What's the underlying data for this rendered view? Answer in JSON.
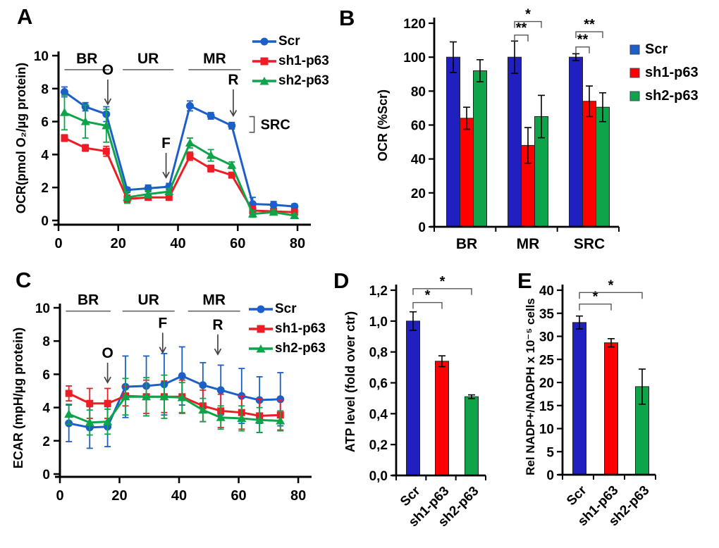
{
  "figure": {
    "background": "#ffffff",
    "panels": [
      "A",
      "B",
      "C",
      "D",
      "E"
    ]
  },
  "colors": {
    "line_blue": "#1C5FC8",
    "bar_blue": "#2020C0",
    "red": "#EE1C25",
    "bar_red": "#FF0000",
    "green": "#0DA44A",
    "axis": "#000000"
  },
  "chart_data": [
    {
      "panel": "A",
      "type": "line",
      "title": "",
      "xlabel": "",
      "ylabel": "OCR(pmol O₂/µg protein)",
      "xlim": [
        0,
        84
      ],
      "ylim": [
        0,
        10
      ],
      "xticks": [
        0,
        20,
        40,
        60,
        80
      ],
      "yticks": [
        0,
        2,
        4,
        6,
        8,
        10
      ],
      "legend_position": "top-right",
      "x": [
        2,
        9,
        16,
        23,
        30,
        37,
        44,
        51,
        58,
        65,
        72,
        79
      ],
      "series": [
        {
          "name": "Scr",
          "marker": "circle",
          "color": "#1C5FC8",
          "values": [
            7.8,
            6.9,
            6.45,
            1.85,
            1.95,
            2.05,
            6.95,
            6.35,
            5.75,
            1.0,
            0.95,
            0.85
          ],
          "errors": [
            0.3,
            0.25,
            0.45,
            0.15,
            0.2,
            0.2,
            0.3,
            0.2,
            0.2,
            0.4,
            0.2,
            0.15
          ]
        },
        {
          "name": "sh1-p63",
          "marker": "square",
          "color": "#EE1C25",
          "values": [
            5.0,
            4.4,
            4.2,
            1.3,
            1.4,
            1.4,
            3.9,
            3.15,
            2.75,
            0.6,
            0.55,
            0.5
          ],
          "errors": [
            0.2,
            0.2,
            0.3,
            0.25,
            0.15,
            0.15,
            0.25,
            0.2,
            0.15,
            0.25,
            0.15,
            0.1
          ]
        },
        {
          "name": "sh2-p63",
          "marker": "triangle",
          "color": "#0DA44A",
          "values": [
            6.55,
            6.0,
            5.75,
            1.4,
            1.6,
            1.75,
            4.7,
            3.95,
            3.35,
            0.4,
            0.5,
            0.3
          ],
          "errors": [
            1.05,
            1.0,
            1.0,
            0.35,
            0.2,
            0.2,
            0.3,
            0.35,
            0.2,
            0.2,
            0.15,
            0.1
          ]
        }
      ],
      "phases": [
        {
          "label": "BR",
          "x0": 2,
          "x1": 17
        },
        {
          "label": "UR",
          "x0": 21.5,
          "x1": 38.5
        },
        {
          "label": "MR",
          "x0": 43.5,
          "x1": 61
        }
      ],
      "phase_y": 9.15,
      "arrows": [
        {
          "label": "O",
          "x": 16.5,
          "ytop": 8.55,
          "ytip": 7.05
        },
        {
          "label": "F",
          "x": 36,
          "ytop": 4.1,
          "ytip": 2.6
        },
        {
          "label": "R",
          "x": 58.5,
          "ytop": 7.95,
          "ytip": 6.35
        }
      ],
      "side_bracket": {
        "label": "SRC",
        "x": 65.5,
        "y0": 5.35,
        "y1": 6.3
      }
    },
    {
      "panel": "B",
      "type": "bar_grouped",
      "title": "",
      "xlabel": "",
      "ylabel": "OCR (%Scr)",
      "ylim": [
        0,
        120
      ],
      "yticks": [
        0,
        20,
        40,
        60,
        80,
        100,
        120
      ],
      "legend_position": "right",
      "categories": [
        "BR",
        "MR",
        "SRC"
      ],
      "series": [
        {
          "name": "Scr",
          "color": "#2020C0",
          "values": [
            100,
            100,
            100
          ],
          "errors": [
            9,
            9.5,
            2
          ]
        },
        {
          "name": "sh1-p63",
          "color": "#FF0000",
          "values": [
            64,
            48,
            74
          ],
          "errors": [
            6.5,
            10.5,
            9
          ]
        },
        {
          "name": "sh2-p63",
          "color": "#0DA44A",
          "values": [
            92,
            65,
            70.5
          ],
          "errors": [
            6.5,
            12.5,
            8.5
          ]
        }
      ],
      "sig": [
        {
          "cat": 1,
          "s1": 0,
          "s2": 1,
          "y": 113,
          "label": "**"
        },
        {
          "cat": 1,
          "s1": 0,
          "s2": 2,
          "y": 121,
          "label": "*"
        },
        {
          "cat": 2,
          "s1": 0,
          "s2": 1,
          "y": 106,
          "label": "**"
        },
        {
          "cat": 2,
          "s1": 0,
          "s2": 2,
          "y": 115,
          "label": "**"
        }
      ]
    },
    {
      "panel": "C",
      "type": "line",
      "title": "",
      "xlabel": "",
      "ylabel": "ECAR (mpH/µg protein)",
      "xlim": [
        0,
        84
      ],
      "ylim": [
        0,
        10
      ],
      "xticks": [
        0,
        20,
        40,
        60,
        80
      ],
      "yticks": [
        0,
        2,
        4,
        6,
        8,
        10
      ],
      "legend_position": "top-right",
      "x": [
        3,
        10,
        16,
        22,
        29,
        35,
        41,
        48,
        54,
        61,
        67,
        74
      ],
      "series": [
        {
          "name": "Scr",
          "marker": "circle",
          "color": "#1C5FC8",
          "values": [
            3.05,
            2.8,
            2.85,
            5.25,
            5.3,
            5.4,
            5.9,
            5.35,
            5.05,
            4.7,
            4.45,
            4.5
          ],
          "errors": [
            1.1,
            1.25,
            1.2,
            1.85,
            1.8,
            1.85,
            1.75,
            1.35,
            1.5,
            1.65,
            1.4,
            1.6
          ]
        },
        {
          "name": "sh1-p63",
          "marker": "square",
          "color": "#EE1C25",
          "values": [
            4.85,
            4.25,
            4.25,
            4.7,
            4.65,
            4.65,
            4.65,
            4.1,
            3.8,
            3.7,
            3.5,
            3.55
          ],
          "errors": [
            0.45,
            0.9,
            0.9,
            0.6,
            1.0,
            0.95,
            1.0,
            0.95,
            1.0,
            1.0,
            1.0,
            0.9
          ]
        },
        {
          "name": "sh2-p63",
          "marker": "triangle",
          "color": "#0DA44A",
          "values": [
            3.6,
            3.1,
            3.15,
            4.65,
            4.65,
            4.65,
            4.6,
            3.85,
            3.4,
            3.35,
            3.25,
            3.2
          ],
          "errors": [
            0.6,
            0.75,
            0.75,
            1.1,
            1.15,
            1.3,
            0.9,
            0.7,
            0.7,
            0.75,
            0.75,
            0.6
          ]
        }
      ],
      "phases": [
        {
          "label": "BR",
          "x0": 2,
          "x1": 17
        },
        {
          "label": "UR",
          "x0": 21,
          "x1": 38.5
        },
        {
          "label": "MR",
          "x0": 43,
          "x1": 60.5
        }
      ],
      "phase_y": 9.8,
      "arrows": [
        {
          "label": "O",
          "x": 16,
          "ytop": 6.7,
          "ytip": 5.5
        },
        {
          "label": "F",
          "x": 34.5,
          "ytop": 8.5,
          "ytip": 7.3
        },
        {
          "label": "R",
          "x": 53,
          "ytop": 8.4,
          "ytip": 7.2
        }
      ]
    },
    {
      "panel": "D",
      "type": "bar",
      "title": "",
      "xlabel": "",
      "ylabel": "ATP level (fold over ctr)",
      "ylim": [
        0,
        1.2
      ],
      "yticks": [
        0,
        0.2,
        0.4,
        0.6,
        0.8,
        1.0,
        1.2
      ],
      "ytick_labels": [
        "0,0",
        "0,2",
        "0,4",
        "0,6",
        "0,8",
        "1,0",
        "1,2"
      ],
      "categories": [
        "Scr",
        "sh1-p63",
        "sh2-p63"
      ],
      "values": [
        1.0,
        0.74,
        0.51
      ],
      "errors": [
        0.06,
        0.035,
        0.012
      ],
      "colors": [
        "#2020C0",
        "#FF0000",
        "#0DA44A"
      ],
      "sig": [
        {
          "c1": 0,
          "c2": 1,
          "y": 1.12,
          "label": "*"
        },
        {
          "c1": 0,
          "c2": 2,
          "y": 1.21,
          "label": "*"
        }
      ]
    },
    {
      "panel": "E",
      "type": "bar",
      "title": "",
      "xlabel": "",
      "ylabel": "Rel NADP+/NADPH x 10⁻⁵ cells",
      "ylim": [
        0,
        40
      ],
      "yticks": [
        0,
        5,
        10,
        15,
        20,
        25,
        30,
        35,
        40
      ],
      "categories": [
        "Scr",
        "sh1-p63",
        "sh2-p63"
      ],
      "values": [
        33,
        28.6,
        19.1
      ],
      "errors": [
        1.4,
        0.9,
        3.8
      ],
      "colors": [
        "#2020C0",
        "#FF0000",
        "#0DA44A"
      ],
      "sig": [
        {
          "c1": 0,
          "c2": 1,
          "y": 37,
          "label": "*"
        },
        {
          "c1": 0,
          "c2": 2,
          "y": 39.5,
          "label": "*"
        }
      ]
    }
  ]
}
